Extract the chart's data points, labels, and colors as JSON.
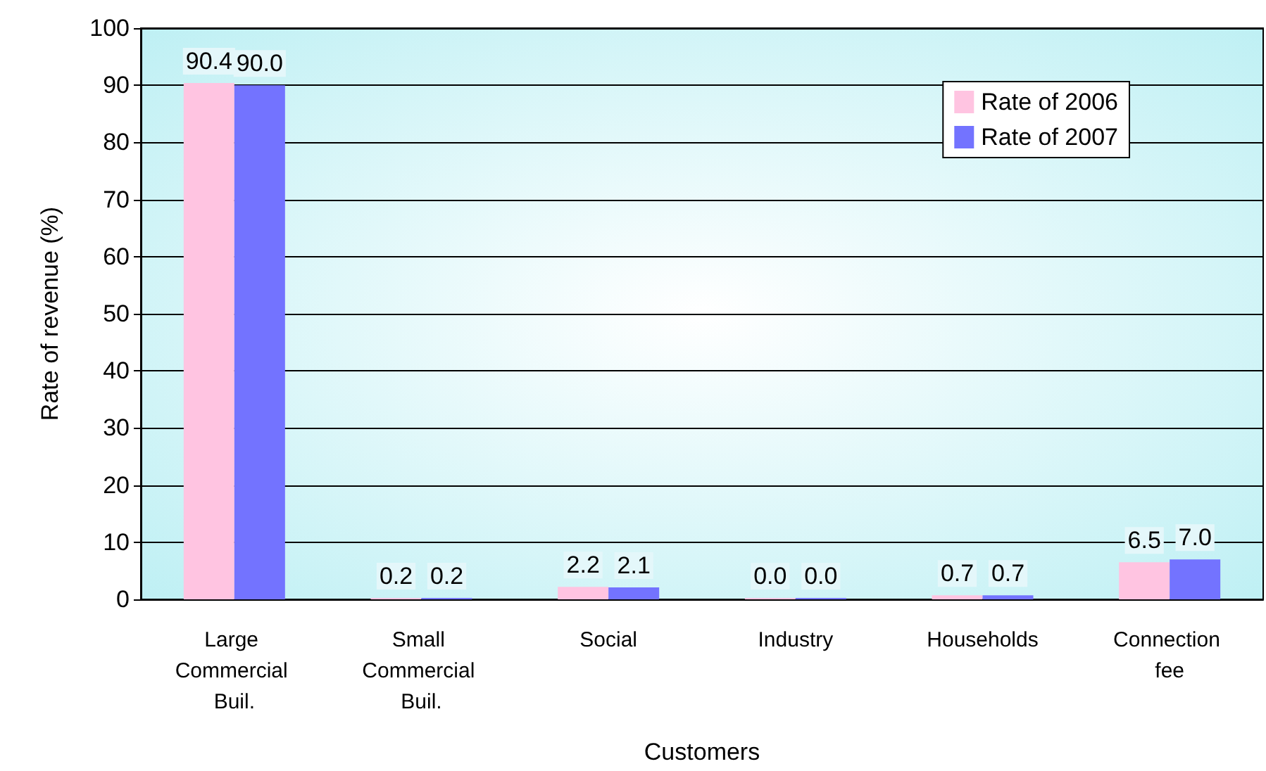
{
  "chart_data": {
    "type": "bar",
    "xlabel": "Customers",
    "ylabel": "Rate of revenue (%)",
    "categories": [
      "Large Commercial Buil.",
      "Small Commercial Buil.",
      "Social",
      "Industry",
      "Households",
      "Connection fee"
    ],
    "series": [
      {
        "name": "Rate of 2006",
        "color": "#ffc4e1",
        "values": [
          90.4,
          0.2,
          2.2,
          0.0,
          0.7,
          6.5
        ],
        "value_labels": [
          "90.4",
          "0.2",
          "2.2",
          "0.0",
          "0.7",
          "6.5"
        ]
      },
      {
        "name": "Rate of 2007",
        "color": "#7373ff",
        "values": [
          90.0,
          0.2,
          2.1,
          0.0,
          0.7,
          7.0
        ],
        "value_labels": [
          "90.0",
          "0.2",
          "2.1",
          "0.0",
          "0.7",
          "7.0"
        ]
      }
    ],
    "ylim": [
      0,
      100
    ],
    "yticks": [
      0,
      10,
      20,
      30,
      40,
      50,
      60,
      70,
      80,
      90,
      100
    ],
    "grid": "y",
    "legend": "top right"
  }
}
